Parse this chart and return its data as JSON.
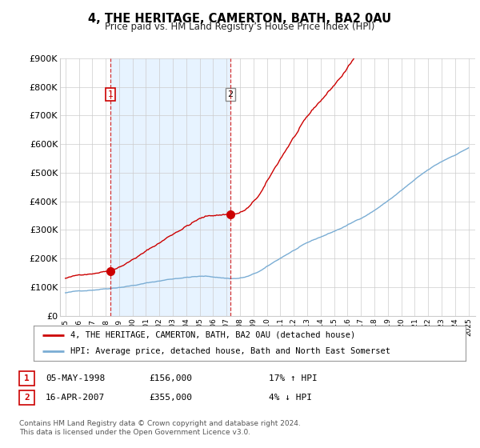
{
  "title": "4, THE HERITAGE, CAMERTON, BATH, BA2 0AU",
  "subtitle": "Price paid vs. HM Land Registry’s House Price Index (HPI)",
  "ylim": [
    0,
    900000
  ],
  "yticks": [
    0,
    100000,
    200000,
    300000,
    400000,
    500000,
    600000,
    700000,
    800000,
    900000
  ],
  "ytick_labels": [
    "£0",
    "£100K",
    "£200K",
    "£300K",
    "£400K",
    "£500K",
    "£600K",
    "£700K",
    "£800K",
    "£900K"
  ],
  "sale1_year": 1998.35,
  "sale1_price": 156000,
  "sale2_year": 2007.29,
  "sale2_price": 355000,
  "legend_red": "4, THE HERITAGE, CAMERTON, BATH, BA2 0AU (detached house)",
  "legend_blue": "HPI: Average price, detached house, Bath and North East Somerset",
  "table_row1": [
    "1",
    "05-MAY-1998",
    "£156,000",
    "17% ↑ HPI"
  ],
  "table_row2": [
    "2",
    "16-APR-2007",
    "£355,000",
    "4% ↓ HPI"
  ],
  "footer": "Contains HM Land Registry data © Crown copyright and database right 2024.\nThis data is licensed under the Open Government Licence v3.0.",
  "red_color": "#cc0000",
  "blue_color": "#7aadd4",
  "shade_color": "#ddeeff",
  "grid_color": "#cccccc",
  "background": "#ffffff"
}
